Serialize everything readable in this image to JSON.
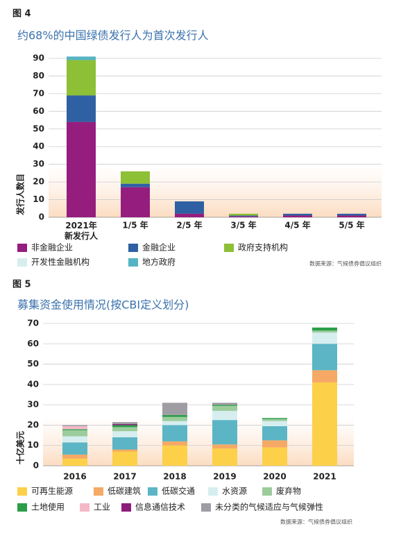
{
  "chart_data": [
    {
      "type": "stacked-bar",
      "figure_label": "图 4",
      "title": "约68%的中国绿债发行人为首次发行人",
      "y_label": "发行人数目",
      "source": "数据来源：气候债券倡议组织",
      "categories": [
        "2021年\n新发行人",
        "1/5 年",
        "2/5 年",
        "3/5 年",
        "4/5 年",
        "5/5 年"
      ],
      "ylim": [
        0,
        90
      ],
      "yticks": [
        0,
        10,
        20,
        30,
        40,
        50,
        60,
        70,
        80,
        90
      ],
      "grid": true,
      "series": [
        {
          "name": "非金融企业",
          "color": "#951d7e",
          "values": [
            54,
            17,
            2,
            0.5,
            1,
            1
          ]
        },
        {
          "name": "金融企业",
          "color": "#2f60a4",
          "values": [
            15,
            2,
            7,
            0.5,
            1,
            1
          ]
        },
        {
          "name": "政府支持机构",
          "color": "#8dbf37",
          "values": [
            20,
            7,
            0,
            1,
            0,
            0
          ]
        },
        {
          "name": "开发性金融机构",
          "color": "#d6eeee",
          "values": [
            0,
            0,
            0,
            0,
            0,
            0
          ]
        },
        {
          "name": "地方政府",
          "color": "#55b4c3",
          "values": [
            2,
            0,
            0,
            0,
            0,
            0
          ]
        }
      ]
    },
    {
      "type": "stacked-bar",
      "figure_label": "图 5",
      "title": "募集资金使用情况(按CBI定义划分)",
      "y_label": "十亿美元",
      "source": "数据来源：气候债券倡议组织",
      "categories": [
        "2016",
        "2017",
        "2018",
        "2019",
        "2020",
        "2021"
      ],
      "ylim": [
        0,
        70
      ],
      "yticks": [
        0,
        10,
        20,
        30,
        40,
        50,
        60,
        70
      ],
      "grid": true,
      "series": [
        {
          "name": "可再生能源",
          "color": "#fdd04a",
          "values": [
            3.5,
            7,
            10,
            8.5,
            9,
            41
          ]
        },
        {
          "name": "低碳建筑",
          "color": "#f5a964",
          "values": [
            2,
            1,
            2,
            2,
            3.5,
            6
          ]
        },
        {
          "name": "低碳交通",
          "color": "#5bb5c5",
          "values": [
            6,
            6,
            8,
            12,
            7,
            13
          ]
        },
        {
          "name": "水资源",
          "color": "#d6eef0",
          "values": [
            3,
            3,
            2,
            4.5,
            2.5,
            5.5
          ]
        },
        {
          "name": "废弃物",
          "color": "#9ccc9c",
          "values": [
            3,
            2,
            2,
            2.5,
            1,
            1
          ]
        },
        {
          "name": "土地使用",
          "color": "#2a9e4a",
          "values": [
            0.5,
            1,
            1,
            0.5,
            0.5,
            1.5
          ]
        },
        {
          "name": "工业",
          "color": "#f5b8c8",
          "values": [
            1.5,
            0,
            0,
            0,
            0,
            0
          ]
        },
        {
          "name": "信息通信技术",
          "color": "#8b1d7a",
          "values": [
            0,
            0.5,
            0,
            0,
            0,
            0
          ]
        },
        {
          "name": "未分类的气候适应与气候弹性",
          "color": "#a09ca4",
          "values": [
            0.5,
            1,
            6,
            1,
            0,
            0
          ]
        }
      ]
    }
  ]
}
